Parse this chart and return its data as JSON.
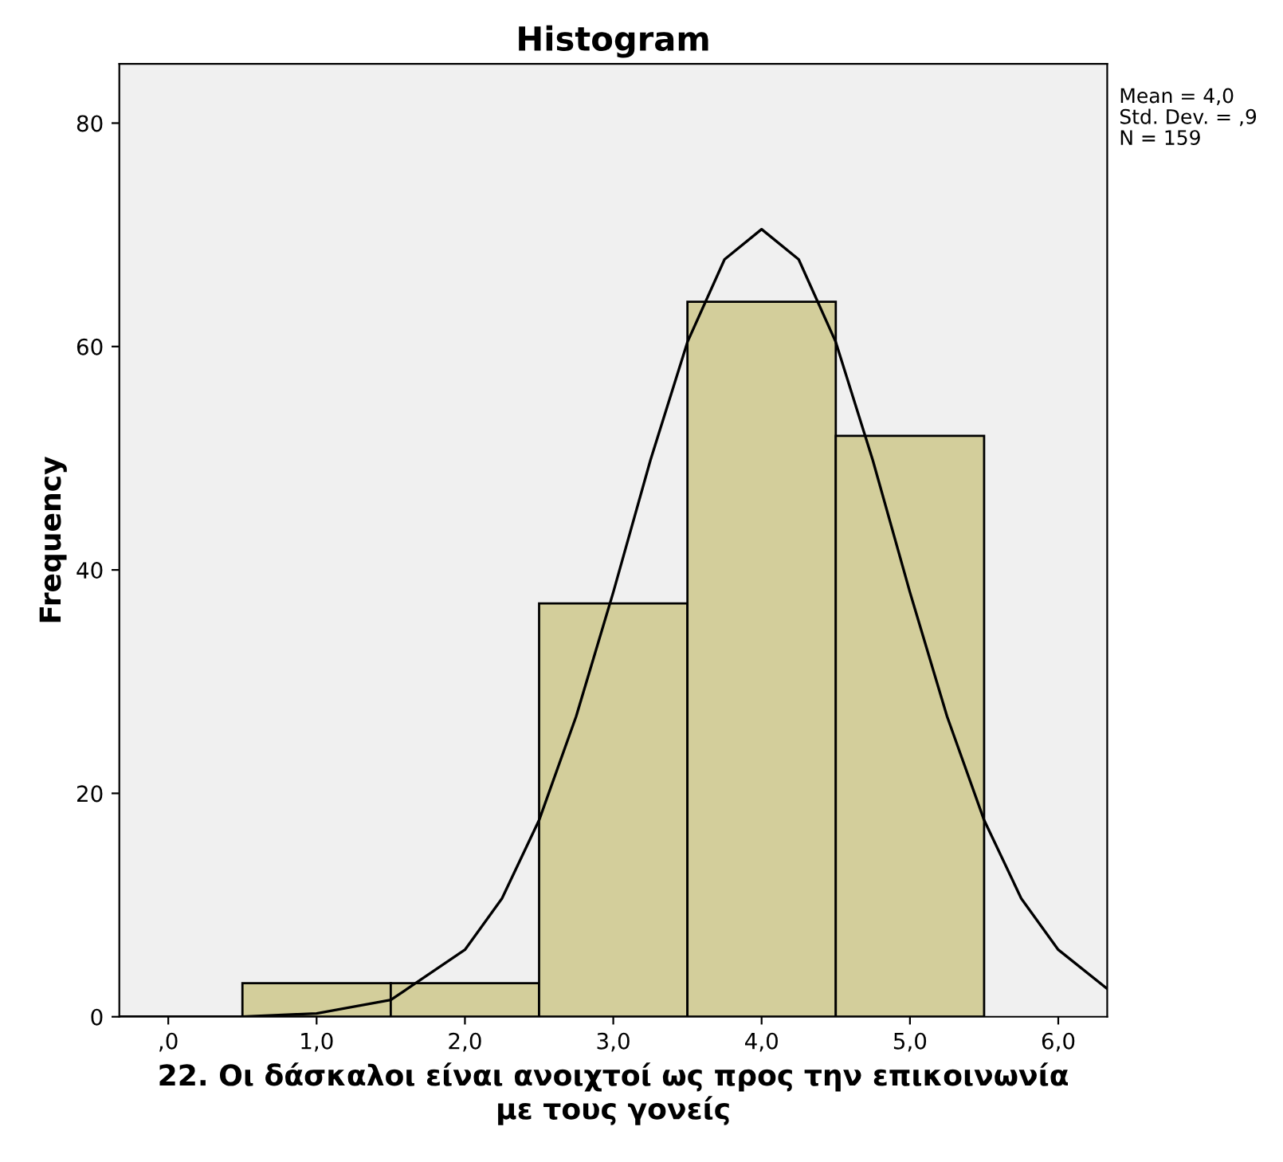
{
  "chart_data": {
    "type": "histogram",
    "title": "Histogram",
    "xlabel": "22. Οι δάσκαλοι είναι ανοιχτοί ως προς την επικοινωνία\nμε τους γονείς",
    "ylabel": "Frequency",
    "bins": [
      0.5,
      1.5,
      2.5,
      3.5,
      4.5,
      5.5
    ],
    "values": [
      3,
      3,
      37,
      64,
      52
    ],
    "color": "#d3ce9b",
    "series": [
      {
        "type": "line",
        "color": "#000000",
        "x": [
          -0.33,
          0.5,
          1,
          1.5,
          2,
          2.25,
          2.5,
          2.75,
          3,
          3.25,
          3.5,
          3.75,
          4,
          4.25,
          4.5,
          4.75,
          5,
          5.25,
          5.5,
          5.75,
          6,
          6.33
        ],
        "values": [
          0,
          0,
          0.3,
          1.5,
          6,
          10.6,
          17.6,
          26.9,
          38,
          49.8,
          60.4,
          67.8,
          70.5,
          67.8,
          60.4,
          49.8,
          38,
          26.9,
          17.6,
          10.6,
          6,
          2.5
        ]
      }
    ],
    "xlim": [
      -0.33,
      6.33
    ],
    "xticks": [
      {
        "value": 0,
        "label": ",0"
      },
      {
        "value": 1,
        "label": "1,0"
      },
      {
        "value": 2,
        "label": "2,0"
      },
      {
        "value": 3,
        "label": "3,0"
      },
      {
        "value": 4,
        "label": "4,0"
      },
      {
        "value": 5,
        "label": "5,0"
      },
      {
        "value": 6,
        "label": "6,0"
      }
    ],
    "ylim": [
      0,
      85.3
    ],
    "yticks": [
      0,
      20,
      40,
      60,
      80
    ],
    "grid": false,
    "annotations": [
      "Mean = 4,0",
      "Std. Dev. = ,9",
      "N = 159"
    ]
  }
}
